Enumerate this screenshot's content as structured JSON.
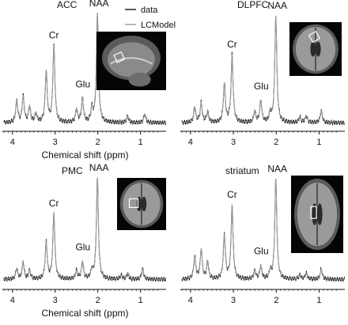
{
  "legend": {
    "data_label": "data",
    "model_label": "LCModel"
  },
  "colors": {
    "data": "#111111",
    "model": "#9a9a9a",
    "axis": "#111111"
  },
  "chart_data": [
    {
      "type": "line",
      "region": "ACC",
      "xlabel": "Chemical shift (ppm)",
      "xlim": [
        4.2,
        0.4
      ],
      "x_ticks": [
        4,
        3,
        2,
        1
      ],
      "peak_labels": [
        {
          "text": "Cr",
          "ppm": 3.03
        },
        {
          "text": "Glu",
          "ppm": 2.35
        },
        {
          "text": "NAA",
          "ppm": 2.01
        }
      ],
      "peaks": [
        [
          3.03,
          0.7
        ],
        [
          3.21,
          0.47
        ],
        [
          2.01,
          1.0
        ],
        [
          2.36,
          0.22
        ],
        [
          3.75,
          0.24
        ],
        [
          3.9,
          0.2
        ],
        [
          3.6,
          0.14
        ],
        [
          2.5,
          0.12
        ],
        [
          2.14,
          0.12
        ],
        [
          1.3,
          0.06
        ],
        [
          0.9,
          0.08
        ],
        [
          3.45,
          0.08
        ]
      ],
      "inset": "sagittal"
    },
    {
      "type": "line",
      "region": "DLPFC",
      "xlabel": "",
      "xlim": [
        4.2,
        0.4
      ],
      "x_ticks": [
        4,
        3,
        2,
        1
      ],
      "peak_labels": [
        {
          "text": "Cr",
          "ppm": 3.03
        },
        {
          "text": "Glu",
          "ppm": 2.35
        },
        {
          "text": "NAA",
          "ppm": 2.01
        }
      ],
      "peaks": [
        [
          3.03,
          0.62
        ],
        [
          3.21,
          0.35
        ],
        [
          2.01,
          0.98
        ],
        [
          2.36,
          0.2
        ],
        [
          3.75,
          0.18
        ],
        [
          3.9,
          0.14
        ],
        [
          3.6,
          0.1
        ],
        [
          2.5,
          0.1
        ],
        [
          2.14,
          0.08
        ],
        [
          1.3,
          0.06
        ],
        [
          0.95,
          0.11
        ],
        [
          1.45,
          0.05
        ]
      ],
      "inset": "axial-dlpfc"
    },
    {
      "type": "line",
      "region": "PMC",
      "xlabel": "Chemical shift (ppm)",
      "xlim": [
        4.2,
        0.4
      ],
      "x_ticks": [
        4,
        3,
        2,
        1
      ],
      "peak_labels": [
        {
          "text": "Cr",
          "ppm": 3.03
        },
        {
          "text": "Glu",
          "ppm": 2.35
        },
        {
          "text": "NAA",
          "ppm": 2.01
        }
      ],
      "peaks": [
        [
          3.03,
          0.62
        ],
        [
          3.21,
          0.35
        ],
        [
          2.01,
          0.96
        ],
        [
          2.36,
          0.16
        ],
        [
          3.75,
          0.16
        ],
        [
          3.9,
          0.1
        ],
        [
          3.6,
          0.08
        ],
        [
          2.5,
          0.08
        ],
        [
          2.14,
          0.08
        ],
        [
          1.3,
          0.05
        ],
        [
          0.95,
          0.1
        ],
        [
          1.45,
          0.04
        ]
      ],
      "inset": "axial-pmc"
    },
    {
      "type": "line",
      "region": "striatum",
      "xlabel": "",
      "xlim": [
        4.2,
        0.4
      ],
      "x_ticks": [
        4,
        3,
        2,
        1
      ],
      "peak_labels": [
        {
          "text": "Cr",
          "ppm": 3.03
        },
        {
          "text": "Glu",
          "ppm": 2.35
        },
        {
          "text": "NAA",
          "ppm": 2.01
        }
      ],
      "peaks": [
        [
          3.03,
          0.7
        ],
        [
          3.21,
          0.42
        ],
        [
          2.01,
          0.95
        ],
        [
          2.36,
          0.12
        ],
        [
          3.75,
          0.28
        ],
        [
          3.9,
          0.22
        ],
        [
          3.6,
          0.16
        ],
        [
          2.5,
          0.08
        ],
        [
          2.14,
          0.07
        ],
        [
          1.3,
          0.06
        ],
        [
          0.95,
          0.1
        ],
        [
          1.45,
          0.04
        ]
      ],
      "inset": "axial-striatum"
    }
  ]
}
